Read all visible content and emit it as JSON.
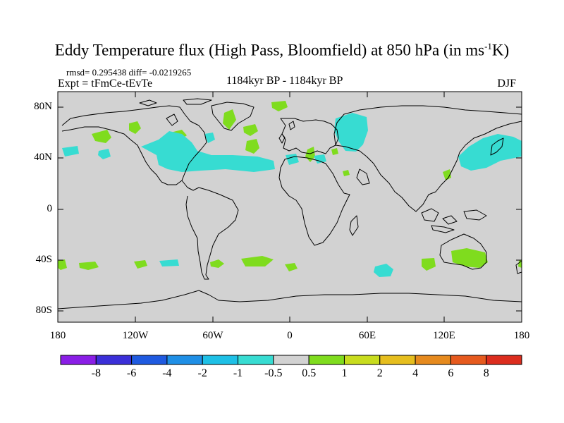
{
  "title": {
    "text": "Eddy Temperature flux (High Pass, Bloomfield) at 850 hPa (in ms",
    "superscript": "-1",
    "suffix": "K)"
  },
  "stats": "rmsd= 0.295438 diff= -0.0219265",
  "experiment": "Expt = tFmCe-tEvTe",
  "period": "1184kyr BP - 1184kyr BP",
  "season": "DJF",
  "axes": {
    "lat_labels": [
      "80N",
      "40N",
      "0",
      "40S",
      "80S"
    ],
    "lon_labels": [
      "180",
      "120W",
      "60W",
      "0",
      "60E",
      "120E",
      "180"
    ]
  },
  "colorbar": {
    "labels": [
      "-8",
      "-6",
      "-4",
      "-2",
      "-1",
      "-0.5",
      "0.5",
      "1",
      "2",
      "4",
      "6",
      "8"
    ],
    "colors": [
      "#8a1ee6",
      "#3b2fd8",
      "#1f5ae0",
      "#1f8fe6",
      "#1ec0e6",
      "#37dcd2",
      "#d2d2d2",
      "#7fdc1e",
      "#c8dc1e",
      "#e6be1e",
      "#e68a1e",
      "#e65a1e",
      "#dc2d1e"
    ]
  },
  "colors": {
    "ocean_background": "#d2d2d2",
    "positive_anomaly": "#7fdc1e",
    "negative_anomaly": "#37dcd2",
    "coastline": "#000000"
  }
}
